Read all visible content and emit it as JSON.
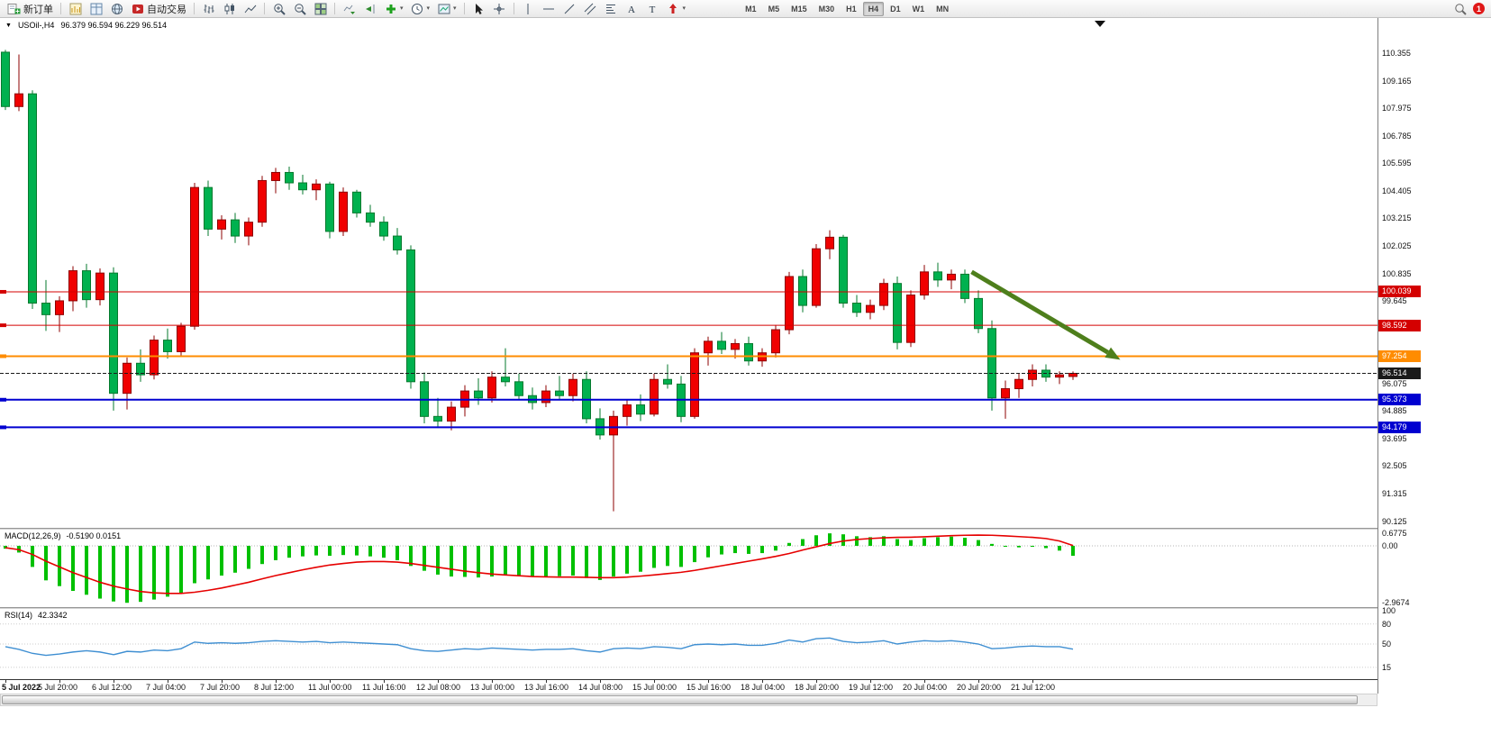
{
  "toolbar": {
    "new_order_label": "新订单",
    "autotrading_label": "自动交易",
    "timeframes": [
      "M1",
      "M5",
      "M15",
      "M30",
      "H1",
      "H4",
      "D1",
      "W1",
      "MN"
    ],
    "active_timeframe": "H4",
    "notification_count": "1"
  },
  "chart": {
    "symbol_period": "USOil-,H4",
    "ohlc_line": "96.379 96.594 96.229 96.514",
    "axis_labels": [
      "110.355",
      "109.165",
      "107.975",
      "106.785",
      "105.595",
      "104.405",
      "103.215",
      "102.025",
      "100.835",
      "99.645",
      "96.075",
      "94.885",
      "93.695",
      "92.505",
      "91.315",
      "90.125"
    ],
    "price_lines": [
      {
        "value": 100.039,
        "label": "100.039",
        "color": "#d40000",
        "width": 1
      },
      {
        "value": 98.592,
        "label": "98.592",
        "color": "#d40000",
        "width": 1
      },
      {
        "value": 97.254,
        "label": "97.254",
        "color": "#ff8c00",
        "width": 2
      },
      {
        "value": 95.373,
        "label": "95.373",
        "color": "#0000d0",
        "width": 2
      },
      {
        "value": 94.179,
        "label": "94.179",
        "color": "#0000d0",
        "width": 2
      }
    ],
    "bid_line": {
      "value": 96.514,
      "label": "96.514",
      "color": "#1a1a1a"
    },
    "arrow": {
      "from_bar": 71.5,
      "from_price": 100.9,
      "to_bar": 82.5,
      "to_price": 97.1,
      "color": "#4e7f1c"
    },
    "colors": {
      "bull": "#f00000",
      "bull_border": "#8e0000",
      "bear": "#00b14f",
      "bear_border": "#067a2e",
      "background": "#ffffff"
    }
  },
  "chart_data": {
    "type": "candlestick",
    "symbol": "USOil",
    "period": "H4",
    "title": "USOil-,H4 96.379 96.594 96.229 96.514",
    "time_labels": [
      "5 Jul 2022",
      "5 Jul 20:00",
      "6 Jul 12:00",
      "7 Jul 04:00",
      "7 Jul 20:00",
      "8 Jul 12:00",
      "11 Jul 00:00",
      "11 Jul 16:00",
      "12 Jul 08:00",
      "13 Jul 00:00",
      "13 Jul 16:00",
      "14 Jul 08:00",
      "15 Jul 00:00",
      "15 Jul 16:00",
      "18 Jul 04:00",
      "18 Jul 20:00",
      "19 Jul 12:00",
      "20 Jul 04:00",
      "20 Jul 20:00",
      "21 Jul 12:00"
    ],
    "candles": [
      [
        110.4,
        110.5,
        107.9,
        108.05
      ],
      [
        108.05,
        110.3,
        107.85,
        108.6
      ],
      [
        108.6,
        108.75,
        99.3,
        99.55
      ],
      [
        99.55,
        100.55,
        98.35,
        99.05
      ],
      [
        99.05,
        99.85,
        98.3,
        99.65
      ],
      [
        99.65,
        101.15,
        99.2,
        100.95
      ],
      [
        100.95,
        101.25,
        99.35,
        99.7
      ],
      [
        99.7,
        101.05,
        99.45,
        100.85
      ],
      [
        100.85,
        101.1,
        94.9,
        95.65
      ],
      [
        95.65,
        97.2,
        94.95,
        96.95
      ],
      [
        96.95,
        97.55,
        96.15,
        96.45
      ],
      [
        96.45,
        98.15,
        96.25,
        97.95
      ],
      [
        97.95,
        98.45,
        97.15,
        97.45
      ],
      [
        97.45,
        98.7,
        97.25,
        98.55
      ],
      [
        98.55,
        104.75,
        98.4,
        104.55
      ],
      [
        104.55,
        104.85,
        102.45,
        102.75
      ],
      [
        102.75,
        103.35,
        102.3,
        103.15
      ],
      [
        103.15,
        103.45,
        102.15,
        102.45
      ],
      [
        102.45,
        103.25,
        102.05,
        103.05
      ],
      [
        103.05,
        105.05,
        102.85,
        104.85
      ],
      [
        104.85,
        105.4,
        104.3,
        105.2
      ],
      [
        105.2,
        105.45,
        104.45,
        104.75
      ],
      [
        104.75,
        105.1,
        104.25,
        104.45
      ],
      [
        104.45,
        104.9,
        104.0,
        104.7
      ],
      [
        104.7,
        104.8,
        102.35,
        102.65
      ],
      [
        102.65,
        104.55,
        102.45,
        104.35
      ],
      [
        104.35,
        104.45,
        103.25,
        103.45
      ],
      [
        103.45,
        103.8,
        102.85,
        103.05
      ],
      [
        103.05,
        103.3,
        102.25,
        102.45
      ],
      [
        102.45,
        102.8,
        101.65,
        101.85
      ],
      [
        101.85,
        102.05,
        95.85,
        96.15
      ],
      [
        96.15,
        96.55,
        94.35,
        94.65
      ],
      [
        94.65,
        95.45,
        94.15,
        94.45
      ],
      [
        94.45,
        95.3,
        94.05,
        95.05
      ],
      [
        95.05,
        96.0,
        94.65,
        95.75
      ],
      [
        95.75,
        96.3,
        95.15,
        95.45
      ],
      [
        95.45,
        96.6,
        95.25,
        96.35
      ],
      [
        96.35,
        97.6,
        95.95,
        96.15
      ],
      [
        96.15,
        96.5,
        95.35,
        95.55
      ],
      [
        95.55,
        95.9,
        94.95,
        95.25
      ],
      [
        95.25,
        96.0,
        95.05,
        95.75
      ],
      [
        95.75,
        96.4,
        95.35,
        95.55
      ],
      [
        95.55,
        96.5,
        95.3,
        96.25
      ],
      [
        96.25,
        96.6,
        94.35,
        94.55
      ],
      [
        94.55,
        95.0,
        93.65,
        93.85
      ],
      [
        93.85,
        94.9,
        90.55,
        94.65
      ],
      [
        94.65,
        95.4,
        94.25,
        95.15
      ],
      [
        95.15,
        95.6,
        94.45,
        94.75
      ],
      [
        94.75,
        96.5,
        94.65,
        96.25
      ],
      [
        96.25,
        96.9,
        95.85,
        96.05
      ],
      [
        96.05,
        96.4,
        94.4,
        94.65
      ],
      [
        94.65,
        97.6,
        94.55,
        97.4
      ],
      [
        97.4,
        98.1,
        96.85,
        97.9
      ],
      [
        97.9,
        98.3,
        97.35,
        97.55
      ],
      [
        97.55,
        98.0,
        97.15,
        97.8
      ],
      [
        97.8,
        98.1,
        96.85,
        97.05
      ],
      [
        97.05,
        97.6,
        96.8,
        97.4
      ],
      [
        97.4,
        98.6,
        97.2,
        98.4
      ],
      [
        98.4,
        100.9,
        98.2,
        100.7
      ],
      [
        100.7,
        101.0,
        99.15,
        99.45
      ],
      [
        99.45,
        102.1,
        99.35,
        101.9
      ],
      [
        101.9,
        102.7,
        101.45,
        102.4
      ],
      [
        102.4,
        102.5,
        99.35,
        99.55
      ],
      [
        99.55,
        99.9,
        98.95,
        99.15
      ],
      [
        99.15,
        99.7,
        98.85,
        99.45
      ],
      [
        99.45,
        100.6,
        99.25,
        100.4
      ],
      [
        100.4,
        100.7,
        97.55,
        97.85
      ],
      [
        97.85,
        100.1,
        97.65,
        99.9
      ],
      [
        99.9,
        101.2,
        99.7,
        100.9
      ],
      [
        100.9,
        101.3,
        100.25,
        100.55
      ],
      [
        100.55,
        101.0,
        100.15,
        100.8
      ],
      [
        100.8,
        101.0,
        99.55,
        99.75
      ],
      [
        99.75,
        100.1,
        98.25,
        98.45
      ],
      [
        98.45,
        98.8,
        94.9,
        95.45
      ],
      [
        95.45,
        96.2,
        94.55,
        95.85
      ],
      [
        95.85,
        96.5,
        95.45,
        96.25
      ],
      [
        96.25,
        96.9,
        95.95,
        96.65
      ],
      [
        96.65,
        96.9,
        96.15,
        96.35
      ],
      [
        96.35,
        96.6,
        96.05,
        96.45
      ],
      [
        96.379,
        96.594,
        96.229,
        96.514
      ]
    ],
    "indicators": {
      "macd": {
        "label": "MACD(12,26,9)",
        "values_text": "-0.5190 0.0151",
        "axis": [
          "0.6775",
          "0.00",
          "-2.9674"
        ],
        "histogram_color": "#00c000",
        "signal_color": "#e60000",
        "histogram": [
          -0.15,
          -0.35,
          -1.1,
          -1.8,
          -2.1,
          -2.35,
          -2.55,
          -2.75,
          -2.9,
          -2.97,
          -2.92,
          -2.8,
          -2.65,
          -2.45,
          -1.95,
          -1.75,
          -1.55,
          -1.4,
          -1.2,
          -0.95,
          -0.75,
          -0.62,
          -0.55,
          -0.5,
          -0.52,
          -0.48,
          -0.5,
          -0.55,
          -0.62,
          -0.75,
          -1.05,
          -1.3,
          -1.5,
          -1.6,
          -1.62,
          -1.65,
          -1.6,
          -1.55,
          -1.58,
          -1.62,
          -1.6,
          -1.58,
          -1.55,
          -1.68,
          -1.78,
          -1.6,
          -1.45,
          -1.35,
          -1.15,
          -1.05,
          -1.1,
          -0.85,
          -0.6,
          -0.45,
          -0.38,
          -0.42,
          -0.38,
          -0.25,
          0.15,
          0.35,
          0.55,
          0.65,
          0.6,
          0.5,
          0.45,
          0.5,
          0.35,
          0.3,
          0.4,
          0.45,
          0.48,
          0.42,
          0.3,
          0.1,
          -0.05,
          -0.08,
          -0.05,
          -0.12,
          -0.25,
          -0.519
        ],
        "signal": [
          -0.1,
          -0.2,
          -0.45,
          -0.8,
          -1.1,
          -1.4,
          -1.65,
          -1.9,
          -2.1,
          -2.25,
          -2.38,
          -2.45,
          -2.48,
          -2.48,
          -2.42,
          -2.32,
          -2.2,
          -2.05,
          -1.9,
          -1.72,
          -1.55,
          -1.4,
          -1.25,
          -1.12,
          -1.0,
          -0.92,
          -0.85,
          -0.82,
          -0.82,
          -0.85,
          -0.92,
          -1.02,
          -1.12,
          -1.22,
          -1.32,
          -1.4,
          -1.47,
          -1.52,
          -1.56,
          -1.6,
          -1.62,
          -1.63,
          -1.63,
          -1.64,
          -1.66,
          -1.66,
          -1.63,
          -1.58,
          -1.52,
          -1.45,
          -1.38,
          -1.28,
          -1.16,
          -1.04,
          -0.92,
          -0.8,
          -0.68,
          -0.55,
          -0.4,
          -0.22,
          -0.05,
          0.12,
          0.25,
          0.33,
          0.38,
          0.42,
          0.44,
          0.45,
          0.47,
          0.5,
          0.53,
          0.55,
          0.56,
          0.55,
          0.52,
          0.48,
          0.44,
          0.38,
          0.25,
          0.015
        ]
      },
      "rsi": {
        "label": "RSI(14)",
        "value_text": "42.3342",
        "levels": [
          100,
          80,
          50,
          15
        ],
        "line_color": "#3f8fd2",
        "values": [
          46,
          42,
          36,
          33,
          35,
          38,
          40,
          38,
          34,
          39,
          38,
          41,
          40,
          43,
          53,
          51,
          52,
          51,
          52,
          54,
          55,
          54,
          53,
          54,
          52,
          53,
          52,
          51,
          50,
          49,
          43,
          40,
          39,
          41,
          43,
          42,
          44,
          43,
          42,
          41,
          42,
          42,
          43,
          40,
          38,
          43,
          44,
          43,
          46,
          45,
          43,
          49,
          50,
          49,
          50,
          48,
          48,
          51,
          56,
          53,
          58,
          59,
          54,
          52,
          53,
          55,
          50,
          53,
          55,
          54,
          55,
          53,
          50,
          43,
          44,
          46,
          47,
          46,
          46,
          42.33
        ]
      }
    }
  }
}
